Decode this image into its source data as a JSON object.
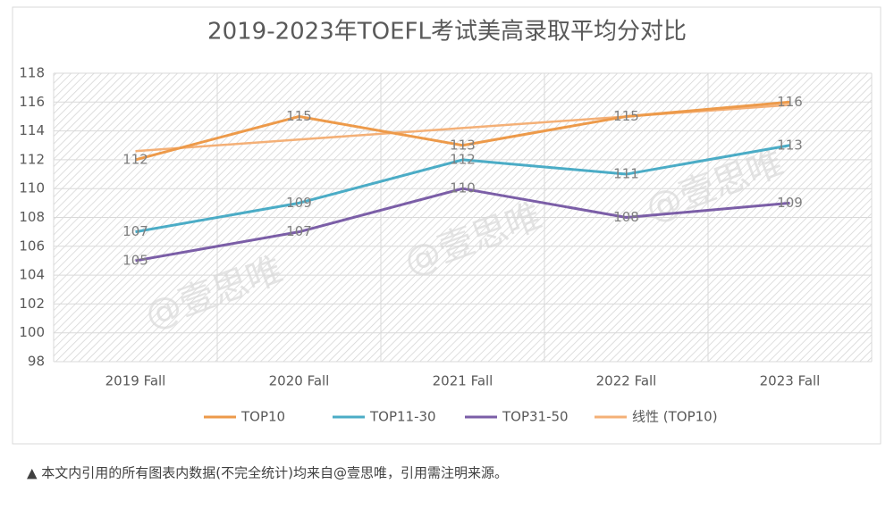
{
  "chart_data": {
    "type": "line",
    "title": "2019-2023年TOEFL考试美高录取平均分对比",
    "categories": [
      "2019 Fall",
      "2020 Fall",
      "2021 Fall",
      "2022 Fall",
      "2023 Fall"
    ],
    "series": [
      {
        "name": "TOP10",
        "color": "#ed9a4a",
        "values": [
          112,
          115,
          113,
          115,
          116
        ],
        "data_labels": true
      },
      {
        "name": "TOP11-30",
        "color": "#4bacc6",
        "values": [
          107,
          109,
          112,
          111,
          113
        ],
        "data_labels": true
      },
      {
        "name": "TOP31-50",
        "color": "#7b5ea7",
        "values": [
          105,
          107,
          110,
          108,
          109
        ],
        "data_labels": true
      },
      {
        "name": "线性 (TOP10)",
        "color": "#f4b077",
        "values": [
          112.6,
          113.4,
          114.2,
          115.0,
          115.8
        ],
        "data_labels": false
      }
    ],
    "ylim": [
      98,
      118
    ],
    "yticks": [
      98,
      100,
      102,
      104,
      106,
      108,
      110,
      112,
      114,
      116,
      118
    ],
    "grid": true,
    "legend": "bottom",
    "watermark": "@壹思唯"
  },
  "footnote": "▲ 本文内引用的所有图表内数据(不完全统计)均来自@壹思唯，引用需注明来源。"
}
